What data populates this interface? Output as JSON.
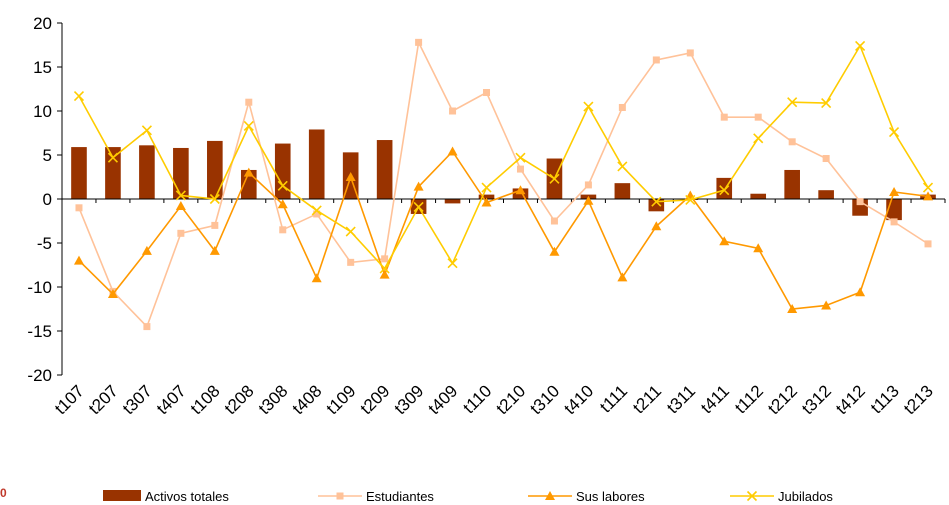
{
  "chart_data": {
    "type": "bar",
    "categories": [
      "t107",
      "t207",
      "t307",
      "t407",
      "t108",
      "t208",
      "t308",
      "t408",
      "t109",
      "t209",
      "t309",
      "t409",
      "t110",
      "t210",
      "t310",
      "t410",
      "t111",
      "t211",
      "t311",
      "t411",
      "t112",
      "t212",
      "t312",
      "t412",
      "t113",
      "t213"
    ],
    "ylim": [
      -20,
      20
    ],
    "yticks": [
      20,
      15,
      10,
      5,
      0,
      -5,
      -10,
      -15,
      -20
    ],
    "grid": false,
    "legend_position": "bottom",
    "series": [
      {
        "name": "Activos totales",
        "kind": "bar",
        "color": "#993300",
        "values": [
          5.9,
          5.9,
          6.1,
          5.8,
          6.6,
          3.3,
          6.3,
          7.9,
          5.3,
          6.7,
          -1.7,
          -0.5,
          0.5,
          1.2,
          4.6,
          0.5,
          1.8,
          -1.4,
          -0.1,
          2.4,
          0.6,
          3.3,
          1.0,
          -1.9,
          -2.4,
          0.5
        ]
      },
      {
        "name": "Estudiantes",
        "kind": "line",
        "marker": "square",
        "color": "#FFC299",
        "values": [
          -1.0,
          -10.5,
          -14.5,
          -3.9,
          -3.0,
          11.0,
          -3.5,
          -1.7,
          -7.2,
          -6.8,
          17.8,
          10.0,
          12.1,
          3.4,
          -2.5,
          1.6,
          10.4,
          15.8,
          16.6,
          9.3,
          9.3,
          6.5,
          4.6,
          -0.3,
          -2.6,
          -5.1
        ]
      },
      {
        "name": "Sus labores",
        "kind": "line",
        "marker": "triangle",
        "color": "#FF9900",
        "values": [
          -7.0,
          -10.8,
          -5.9,
          -0.8,
          -5.9,
          3.0,
          -0.6,
          -9.0,
          2.5,
          -8.6,
          1.4,
          5.4,
          -0.4,
          1.0,
          -6.0,
          -0.2,
          -8.9,
          -3.1,
          0.4,
          -4.8,
          -5.6,
          -12.5,
          -12.1,
          -10.6,
          0.8,
          0.3
        ]
      },
      {
        "name": "Jubilados",
        "kind": "line",
        "marker": "x",
        "color": "#FFCC00",
        "values": [
          11.7,
          4.7,
          7.8,
          0.4,
          0.0,
          8.3,
          1.5,
          -1.3,
          -3.7,
          -7.9,
          -0.9,
          -7.3,
          1.3,
          4.7,
          2.3,
          10.5,
          3.7,
          -0.3,
          -0.1,
          1.0,
          6.9,
          11.0,
          10.9,
          17.4,
          7.6,
          1.3
        ]
      }
    ]
  },
  "logo_text": "0"
}
